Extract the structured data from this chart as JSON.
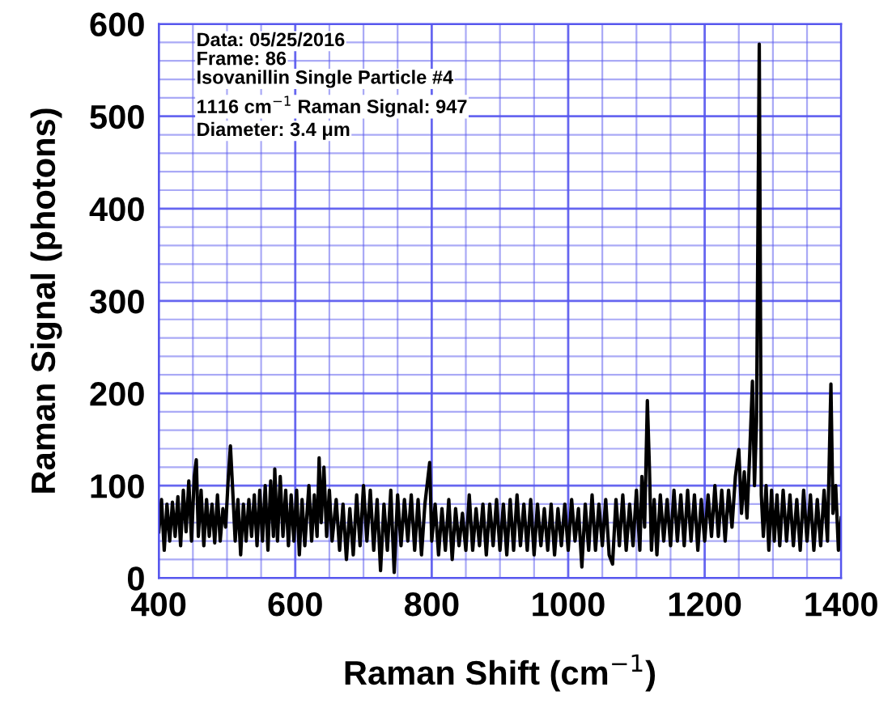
{
  "chart_data": {
    "type": "line",
    "xlabel": "Raman Shift (cm$^{−1}$)",
    "ylabel": "Raman Signal (photons)",
    "annotations": [
      "Data: 05/25/2016",
      "Frame: 86",
      "Isovanillin Single Particle #4",
      "1116 cm$^{−1}$ Raman Signal: 947",
      "Diameter: 3.4 μm"
    ],
    "series": [
      {
        "color": "#000000",
        "x": [
          400,
          404,
          408,
          412,
          416,
          420,
          424,
          428,
          432,
          436,
          440,
          444,
          448,
          452,
          455,
          458,
          462,
          466,
          470,
          474,
          478,
          482,
          486,
          490,
          494,
          498,
          502,
          505,
          508,
          512,
          516,
          520,
          524,
          528,
          532,
          536,
          540,
          544,
          548,
          552,
          556,
          560,
          564,
          568,
          570,
          574,
          578,
          582,
          586,
          590,
          594,
          598,
          602,
          606,
          610,
          614,
          620,
          624,
          628,
          632,
          635,
          638,
          642,
          646,
          650,
          654,
          660,
          665,
          670,
          675,
          680,
          685,
          690,
          695,
          700,
          705,
          710,
          715,
          720,
          725,
          730,
          735,
          740,
          745,
          750,
          755,
          760,
          765,
          770,
          775,
          780,
          785,
          790,
          797,
          800,
          805,
          810,
          815,
          820,
          825,
          830,
          835,
          840,
          845,
          850,
          855,
          860,
          865,
          870,
          875,
          880,
          885,
          890,
          895,
          900,
          905,
          910,
          915,
          920,
          925,
          930,
          935,
          940,
          945,
          950,
          955,
          960,
          965,
          970,
          975,
          980,
          985,
          990,
          995,
          1000,
          1005,
          1010,
          1015,
          1020,
          1025,
          1030,
          1035,
          1040,
          1045,
          1050,
          1055,
          1060,
          1065,
          1070,
          1075,
          1080,
          1085,
          1090,
          1095,
          1100,
          1105,
          1108,
          1112,
          1116,
          1119,
          1122,
          1126,
          1130,
          1135,
          1140,
          1145,
          1150,
          1155,
          1160,
          1165,
          1170,
          1175,
          1180,
          1185,
          1190,
          1195,
          1200,
          1205,
          1210,
          1215,
          1220,
          1225,
          1230,
          1235,
          1240,
          1245,
          1250,
          1254,
          1258,
          1262,
          1266,
          1270,
          1273,
          1276,
          1280,
          1283,
          1286,
          1290,
          1294,
          1298,
          1302,
          1306,
          1310,
          1315,
          1320,
          1325,
          1330,
          1335,
          1340,
          1345,
          1350,
          1355,
          1360,
          1365,
          1370,
          1375,
          1380,
          1385,
          1388,
          1392,
          1396,
          1400
        ],
        "values": [
          50,
          85,
          30,
          80,
          40,
          82,
          45,
          88,
          35,
          95,
          50,
          105,
          40,
          110,
          128,
          45,
          95,
          35,
          85,
          45,
          80,
          38,
          90,
          40,
          75,
          55,
          110,
          143,
          100,
          40,
          85,
          25,
          80,
          40,
          85,
          45,
          90,
          35,
          95,
          40,
          100,
          30,
          105,
          45,
          118,
          40,
          110,
          45,
          95,
          35,
          90,
          40,
          95,
          25,
          85,
          35,
          100,
          40,
          90,
          45,
          130,
          60,
          120,
          45,
          95,
          40,
          85,
          30,
          80,
          20,
          75,
          25,
          90,
          35,
          100,
          40,
          95,
          30,
          85,
          8,
          80,
          30,
          95,
          6,
          90,
          35,
          85,
          40,
          90,
          30,
          85,
          25,
          80,
          125,
          40,
          80,
          25,
          75,
          30,
          85,
          20,
          75,
          35,
          70,
          30,
          90,
          30,
          75,
          35,
          80,
          25,
          80,
          35,
          85,
          30,
          80,
          25,
          85,
          30,
          90,
          35,
          80,
          30,
          85,
          25,
          80,
          35,
          75,
          30,
          80,
          25,
          75,
          35,
          80,
          30,
          85,
          40,
          75,
          12,
          80,
          30,
          90,
          30,
          80,
          35,
          85,
          25,
          15,
          85,
          35,
          90,
          30,
          80,
          35,
          95,
          30,
          110,
          55,
          192,
          120,
          30,
          85,
          25,
          90,
          40,
          85,
          35,
          95,
          40,
          90,
          35,
          95,
          40,
          90,
          30,
          85,
          40,
          90,
          45,
          100,
          45,
          95,
          40,
          95,
          55,
          110,
          139,
          70,
          115,
          65,
          135,
          213,
          100,
          170,
          578,
          90,
          45,
          100,
          30,
          95,
          40,
          90,
          35,
          95,
          40,
          90,
          35,
          85,
          30,
          95,
          40,
          90,
          30,
          85,
          35,
          95,
          40,
          210,
          70,
          100,
          30,
          65
        ]
      }
    ],
    "xlim": [
      400,
      1400
    ],
    "ylim": [
      0,
      600
    ],
    "xticks": [
      400,
      {
        "value": 450,
        "label": null
      },
      {
        "value": 500,
        "label": null
      },
      {
        "value": 550,
        "label": null
      },
      600,
      {
        "value": 650,
        "label": null
      },
      {
        "value": 700,
        "label": null
      },
      {
        "value": 750,
        "label": null
      },
      800,
      {
        "value": 850,
        "label": null
      },
      {
        "value": 900,
        "label": null
      },
      {
        "value": 950,
        "label": null
      },
      1000,
      {
        "value": 1050,
        "label": null
      },
      {
        "value": 1100,
        "label": null
      },
      {
        "value": 1150,
        "label": null
      },
      1200,
      {
        "value": 1250,
        "label": null
      },
      {
        "value": 1300,
        "label": null
      },
      {
        "value": 1350,
        "label": null
      },
      1400
    ],
    "yticks": [
      0,
      {
        "value": 20,
        "label": null
      },
      {
        "value": 40,
        "label": null
      },
      {
        "value": 60,
        "label": null
      },
      {
        "value": 80,
        "label": null
      },
      100,
      {
        "value": 120,
        "label": null
      },
      {
        "value": 140,
        "label": null
      },
      {
        "value": 160,
        "label": null
      },
      {
        "value": 180,
        "label": null
      },
      200,
      {
        "value": 220,
        "label": null
      },
      {
        "value": 240,
        "label": null
      },
      {
        "value": 260,
        "label": null
      },
      {
        "value": 280,
        "label": null
      },
      300,
      {
        "value": 320,
        "label": null
      },
      {
        "value": 340,
        "label": null
      },
      {
        "value": 360,
        "label": null
      },
      {
        "value": 380,
        "label": null
      },
      400,
      {
        "value": 420,
        "label": null
      },
      {
        "value": 440,
        "label": null
      },
      {
        "value": 460,
        "label": null
      },
      {
        "value": 480,
        "label": null
      },
      500,
      {
        "value": 520,
        "label": null
      },
      {
        "value": 540,
        "label": null
      },
      {
        "value": 560,
        "label": null
      },
      {
        "value": 580,
        "label": null
      },
      600
    ],
    "grid": true
  }
}
